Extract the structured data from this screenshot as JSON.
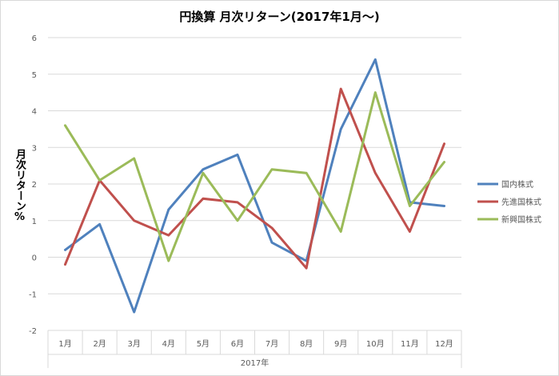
{
  "chart_data": {
    "type": "line",
    "title": "円換算  月次リターン(2017年1月～)",
    "xlabel": "2017年",
    "ylabel": "月次リターン%",
    "categories": [
      "1月",
      "2月",
      "3月",
      "4月",
      "5月",
      "6月",
      "7月",
      "8月",
      "9月",
      "10月",
      "11月",
      "12月"
    ],
    "ylim": [
      -2,
      6
    ],
    "yticks": [
      -2,
      -1,
      0,
      1,
      2,
      3,
      4,
      5,
      6
    ],
    "grid": true,
    "legend": "right",
    "series": [
      {
        "name": "国内株式",
        "color": "#4f81bd",
        "values": [
          0.2,
          0.9,
          -1.5,
          1.3,
          2.4,
          2.8,
          0.4,
          -0.1,
          3.5,
          5.4,
          1.5,
          1.4
        ]
      },
      {
        "name": "先進国株式",
        "color": "#c0504d",
        "values": [
          -0.2,
          2.1,
          1.0,
          0.6,
          1.6,
          1.5,
          0.8,
          -0.3,
          4.6,
          2.3,
          0.7,
          3.1
        ]
      },
      {
        "name": "新興国株式",
        "color": "#9bbb59",
        "values": [
          3.6,
          2.1,
          2.7,
          -0.1,
          2.3,
          1.0,
          2.4,
          2.3,
          0.7,
          4.5,
          1.4,
          2.6
        ]
      }
    ]
  }
}
